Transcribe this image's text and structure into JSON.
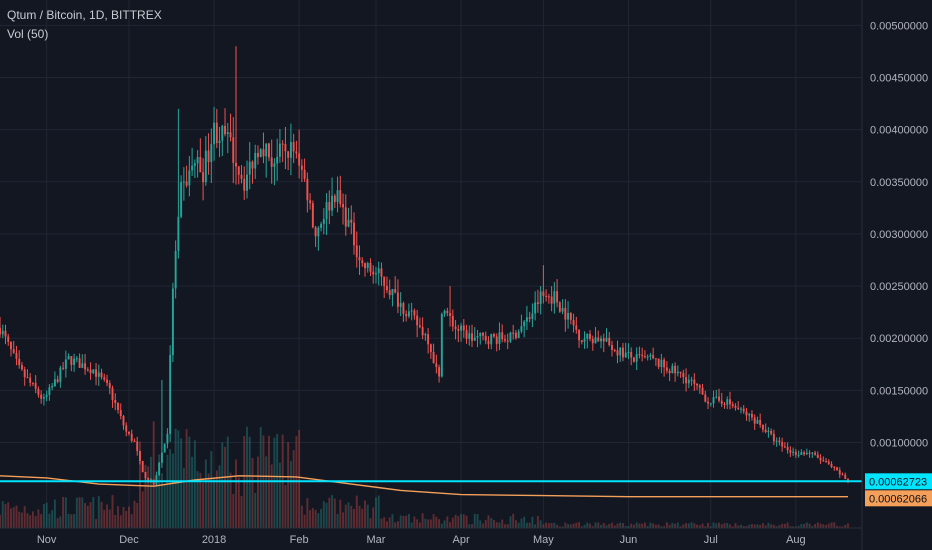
{
  "header": {
    "symbol_title": "Qtum / Bitcoin, 1D, BITTREX",
    "volume_indicator": "Vol (50)"
  },
  "colors": {
    "background": "#131722",
    "up": "#26a69a",
    "down": "#ef5350",
    "grid": "#232632",
    "axis_text": "#b2b5be",
    "hline": "#00e5ff",
    "ma": "#f5a05a",
    "last_price_label_bg": "#00e5ff",
    "ma_label_bg": "#f5a05a"
  },
  "chart_data": {
    "type": "candlestick",
    "title": "Qtum / Bitcoin, 1D, BITTREX",
    "ylim": [
      0.0004,
      0.0051
    ],
    "y_ticks": [
      "0.00500000",
      "0.00450000",
      "0.00400000",
      "0.00350000",
      "0.00300000",
      "0.00250000",
      "0.00200000",
      "0.00150000",
      "0.00100000"
    ],
    "x_ticks": [
      "Nov",
      "Dec",
      "2018",
      "Feb",
      "Mar",
      "Apr",
      "May",
      "Jun",
      "Jul",
      "Aug"
    ],
    "x_tick_dates": [
      "2017-11-01",
      "2017-12-01",
      "2018-01-01",
      "2018-02-01",
      "2018-03-01",
      "2018-04-01",
      "2018-05-01",
      "2018-06-01",
      "2018-07-01",
      "2018-08-01"
    ],
    "date_range": [
      "2017-10-15",
      "2018-08-20"
    ],
    "price_keypoints": [
      [
        "2017-10-15",
        0.0021
      ],
      [
        "2017-10-22",
        0.0017
      ],
      [
        "2017-10-31",
        0.0014
      ],
      [
        "2017-11-09",
        0.0018
      ],
      [
        "2017-11-18",
        0.0017
      ],
      [
        "2017-11-24",
        0.0015
      ],
      [
        "2017-11-30",
        0.0011
      ],
      [
        "2017-12-03",
        0.001
      ],
      [
        "2017-12-06",
        0.0007
      ],
      [
        "2017-12-10",
        0.0006
      ],
      [
        "2017-12-15",
        0.0011
      ],
      [
        "2017-12-17",
        0.0025
      ],
      [
        "2017-12-20",
        0.0034
      ],
      [
        "2017-12-25",
        0.0037
      ],
      [
        "2017-12-28",
        0.0036
      ],
      [
        "2018-01-01",
        0.004
      ],
      [
        "2018-01-06",
        0.0039
      ],
      [
        "2018-01-12",
        0.0035
      ],
      [
        "2018-01-18",
        0.0039
      ],
      [
        "2018-01-22",
        0.0037
      ],
      [
        "2018-01-27",
        0.0038
      ],
      [
        "2018-01-31",
        0.0038
      ],
      [
        "2018-02-04",
        0.0034
      ],
      [
        "2018-02-07",
        0.003
      ],
      [
        "2018-02-10",
        0.0032
      ],
      [
        "2018-02-14",
        0.0034
      ],
      [
        "2018-02-19",
        0.0031
      ],
      [
        "2018-02-24",
        0.0027
      ],
      [
        "2018-03-02",
        0.0026
      ],
      [
        "2018-03-08",
        0.0024
      ],
      [
        "2018-03-14",
        0.0022
      ],
      [
        "2018-03-20",
        0.002
      ],
      [
        "2018-03-24",
        0.0016
      ],
      [
        "2018-03-25",
        0.0023
      ],
      [
        "2018-03-30",
        0.0021
      ],
      [
        "2018-04-05",
        0.002
      ],
      [
        "2018-04-12",
        0.002
      ],
      [
        "2018-04-19",
        0.002
      ],
      [
        "2018-04-26",
        0.0022
      ],
      [
        "2018-04-30",
        0.0024
      ],
      [
        "2018-05-05",
        0.0024
      ],
      [
        "2018-05-10",
        0.0022
      ],
      [
        "2018-05-15",
        0.002
      ],
      [
        "2018-05-21",
        0.002
      ],
      [
        "2018-05-27",
        0.0019
      ],
      [
        "2018-06-03",
        0.0018
      ],
      [
        "2018-06-09",
        0.0018
      ],
      [
        "2018-06-16",
        0.0017
      ],
      [
        "2018-06-23",
        0.0016
      ],
      [
        "2018-06-30",
        0.0014
      ],
      [
        "2018-07-06",
        0.0014
      ],
      [
        "2018-07-12",
        0.0013
      ],
      [
        "2018-07-18",
        0.0012
      ],
      [
        "2018-07-25",
        0.001
      ],
      [
        "2018-07-31",
        0.0009
      ],
      [
        "2018-08-06",
        0.0009
      ],
      [
        "2018-08-12",
        0.0008
      ],
      [
        "2018-08-17",
        0.0007
      ],
      [
        "2018-08-20",
        0.00062723
      ]
    ],
    "spikes": [
      [
        "2018-01-09",
        0.0048
      ],
      [
        "2017-12-13",
        0.0016
      ],
      [
        "2017-12-19",
        0.0042
      ],
      [
        "2018-03-28",
        0.0025
      ],
      [
        "2018-05-01",
        0.0027
      ],
      [
        "2018-02-01",
        0.004
      ]
    ],
    "volume_ma_keypoints": [
      [
        "2017-10-15",
        0.00068
      ],
      [
        "2017-11-01",
        0.00066
      ],
      [
        "2017-11-20",
        0.0006
      ],
      [
        "2017-12-10",
        0.00058
      ],
      [
        "2017-12-25",
        0.00064
      ],
      [
        "2018-01-10",
        0.00068
      ],
      [
        "2018-01-31",
        0.00067
      ],
      [
        "2018-02-20",
        0.0006
      ],
      [
        "2018-03-10",
        0.00054
      ],
      [
        "2018-04-01",
        0.0005
      ],
      [
        "2018-05-01",
        0.00049
      ],
      [
        "2018-06-01",
        0.00048
      ],
      [
        "2018-08-20",
        0.00048
      ]
    ],
    "horizontal_line": 0.00062723,
    "last_price_label": "0.00062723",
    "ma_label": "0.00062066"
  }
}
